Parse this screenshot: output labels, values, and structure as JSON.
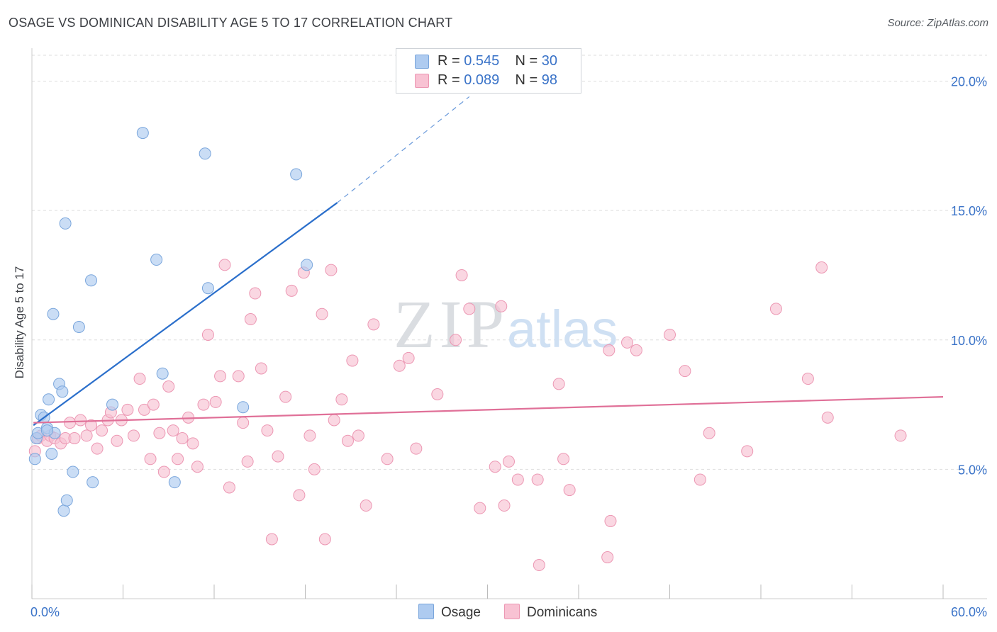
{
  "title": "OSAGE VS DOMINICAN DISABILITY AGE 5 TO 17 CORRELATION CHART",
  "source": "Source: ZipAtlas.com",
  "watermark": {
    "zip": "ZIP",
    "atlas": "atlas"
  },
  "legend": {
    "rows": [
      {
        "r_label": "R = ",
        "r_value": "0.545",
        "n_label": "N = ",
        "n_value": "30"
      },
      {
        "r_label": "R = ",
        "r_value": "0.089",
        "n_label": "N = ",
        "n_value": "98"
      }
    ]
  },
  "bottom_legend": [
    {
      "label": "Osage"
    },
    {
      "label": "Dominicans"
    }
  ],
  "colors": {
    "osage_fill": "#aecbf0",
    "osage_stroke": "#7aa6dc",
    "osage_line": "#2b6fcb",
    "dom_fill": "#f8c2d3",
    "dom_stroke": "#ec97b3",
    "dom_line": "#e07098",
    "axis_label": "#3a73c8",
    "grid": "#dddddd"
  },
  "chart_data": {
    "type": "scatter",
    "title": "OSAGE VS DOMINICAN DISABILITY AGE 5 TO 17 CORRELATION CHART",
    "xlabel": "",
    "ylabel": "Disability Age 5 to 17",
    "xlim": [
      0,
      60
    ],
    "ylim": [
      0,
      21
    ],
    "x_tick_labels": [
      {
        "value": 0,
        "label": "0.0%"
      },
      {
        "value": 60,
        "label": "60.0%"
      }
    ],
    "y_ticks": [
      {
        "value": 5,
        "label": "5.0%"
      },
      {
        "value": 10,
        "label": "10.0%"
      },
      {
        "value": 15,
        "label": "15.0%"
      },
      {
        "value": 20,
        "label": "20.0%"
      }
    ],
    "series": [
      {
        "name": "Osage",
        "r": 0.545,
        "n": 30,
        "trend": {
          "x1": 0.1,
          "y1": 6.7,
          "x2": 20.1,
          "y2": 15.3,
          "dash_to_x": 28.8,
          "dash_to_y": 19.4
        },
        "points": [
          [
            0.2,
            5.4
          ],
          [
            0.3,
            6.2
          ],
          [
            0.4,
            6.4
          ],
          [
            0.6,
            7.1
          ],
          [
            0.8,
            7.0
          ],
          [
            1.0,
            6.6
          ],
          [
            1.1,
            7.7
          ],
          [
            1.3,
            5.6
          ],
          [
            1.5,
            6.4
          ],
          [
            1.8,
            8.3
          ],
          [
            2.0,
            8.0
          ],
          [
            2.1,
            3.4
          ],
          [
            2.2,
            14.5
          ],
          [
            2.3,
            3.8
          ],
          [
            1.4,
            11.0
          ],
          [
            2.7,
            4.9
          ],
          [
            3.1,
            10.5
          ],
          [
            3.9,
            12.3
          ],
          [
            4.0,
            4.5
          ],
          [
            5.3,
            7.5
          ],
          [
            7.3,
            18.0
          ],
          [
            8.2,
            13.1
          ],
          [
            8.6,
            8.7
          ],
          [
            9.4,
            4.5
          ],
          [
            11.4,
            17.2
          ],
          [
            11.6,
            12.0
          ],
          [
            13.9,
            7.4
          ],
          [
            17.4,
            16.4
          ],
          [
            18.1,
            12.9
          ],
          [
            1.0,
            6.5
          ]
        ]
      },
      {
        "name": "Dominicans",
        "r": 0.089,
        "n": 98,
        "trend": {
          "x1": 0.1,
          "y1": 6.8,
          "x2": 60.0,
          "y2": 7.8
        },
        "points": [
          [
            0.2,
            5.7
          ],
          [
            0.4,
            6.2
          ],
          [
            0.6,
            6.3
          ],
          [
            1.0,
            6.1
          ],
          [
            1.2,
            6.3
          ],
          [
            1.5,
            6.2
          ],
          [
            1.9,
            6.0
          ],
          [
            2.2,
            6.2
          ],
          [
            2.5,
            6.8
          ],
          [
            2.8,
            6.2
          ],
          [
            3.2,
            6.9
          ],
          [
            3.6,
            6.3
          ],
          [
            3.9,
            6.7
          ],
          [
            4.3,
            5.8
          ],
          [
            4.6,
            6.5
          ],
          [
            5.0,
            6.9
          ],
          [
            5.2,
            7.2
          ],
          [
            5.6,
            6.1
          ],
          [
            5.9,
            6.9
          ],
          [
            6.3,
            7.3
          ],
          [
            6.7,
            6.3
          ],
          [
            7.1,
            8.5
          ],
          [
            7.4,
            7.3
          ],
          [
            7.8,
            5.4
          ],
          [
            8.0,
            7.5
          ],
          [
            8.4,
            6.4
          ],
          [
            8.7,
            4.9
          ],
          [
            9.0,
            8.2
          ],
          [
            9.3,
            6.5
          ],
          [
            9.6,
            5.4
          ],
          [
            9.9,
            6.2
          ],
          [
            10.3,
            7.0
          ],
          [
            10.6,
            6.0
          ],
          [
            10.9,
            5.1
          ],
          [
            11.3,
            7.5
          ],
          [
            11.6,
            10.2
          ],
          [
            12.1,
            7.6
          ],
          [
            12.4,
            8.6
          ],
          [
            12.7,
            12.9
          ],
          [
            13.0,
            4.3
          ],
          [
            13.6,
            8.6
          ],
          [
            13.9,
            6.8
          ],
          [
            14.4,
            10.8
          ],
          [
            14.7,
            11.8
          ],
          [
            14.2,
            5.3
          ],
          [
            15.1,
            8.9
          ],
          [
            15.5,
            6.5
          ],
          [
            15.8,
            2.3
          ],
          [
            16.2,
            5.5
          ],
          [
            16.7,
            7.8
          ],
          [
            17.1,
            11.9
          ],
          [
            17.6,
            4.0
          ],
          [
            17.9,
            12.6
          ],
          [
            18.3,
            6.3
          ],
          [
            18.6,
            5.0
          ],
          [
            19.1,
            11.0
          ],
          [
            19.3,
            2.3
          ],
          [
            19.7,
            12.7
          ],
          [
            19.9,
            6.9
          ],
          [
            20.4,
            7.7
          ],
          [
            20.8,
            6.1
          ],
          [
            21.1,
            9.2
          ],
          [
            21.5,
            6.3
          ],
          [
            22.0,
            3.6
          ],
          [
            22.5,
            10.6
          ],
          [
            23.4,
            5.4
          ],
          [
            24.2,
            9.0
          ],
          [
            24.8,
            9.3
          ],
          [
            25.3,
            5.8
          ],
          [
            26.7,
            7.9
          ],
          [
            27.9,
            10.0
          ],
          [
            28.3,
            12.5
          ],
          [
            28.8,
            11.2
          ],
          [
            29.5,
            3.5
          ],
          [
            30.5,
            5.1
          ],
          [
            30.9,
            11.3
          ],
          [
            31.1,
            3.6
          ],
          [
            31.4,
            5.3
          ],
          [
            32.0,
            4.6
          ],
          [
            33.3,
            4.6
          ],
          [
            33.4,
            1.3
          ],
          [
            34.7,
            8.3
          ],
          [
            35.0,
            5.4
          ],
          [
            35.4,
            4.2
          ],
          [
            37.9,
            1.6
          ],
          [
            38.0,
            9.6
          ],
          [
            38.1,
            3.0
          ],
          [
            39.2,
            9.9
          ],
          [
            39.8,
            9.6
          ],
          [
            42.0,
            10.2
          ],
          [
            43.0,
            8.8
          ],
          [
            44.0,
            4.6
          ],
          [
            44.6,
            6.4
          ],
          [
            47.1,
            5.7
          ],
          [
            49.0,
            11.2
          ],
          [
            51.1,
            8.5
          ],
          [
            52.0,
            12.8
          ],
          [
            52.4,
            7.0
          ],
          [
            57.2,
            6.3
          ]
        ]
      }
    ]
  }
}
